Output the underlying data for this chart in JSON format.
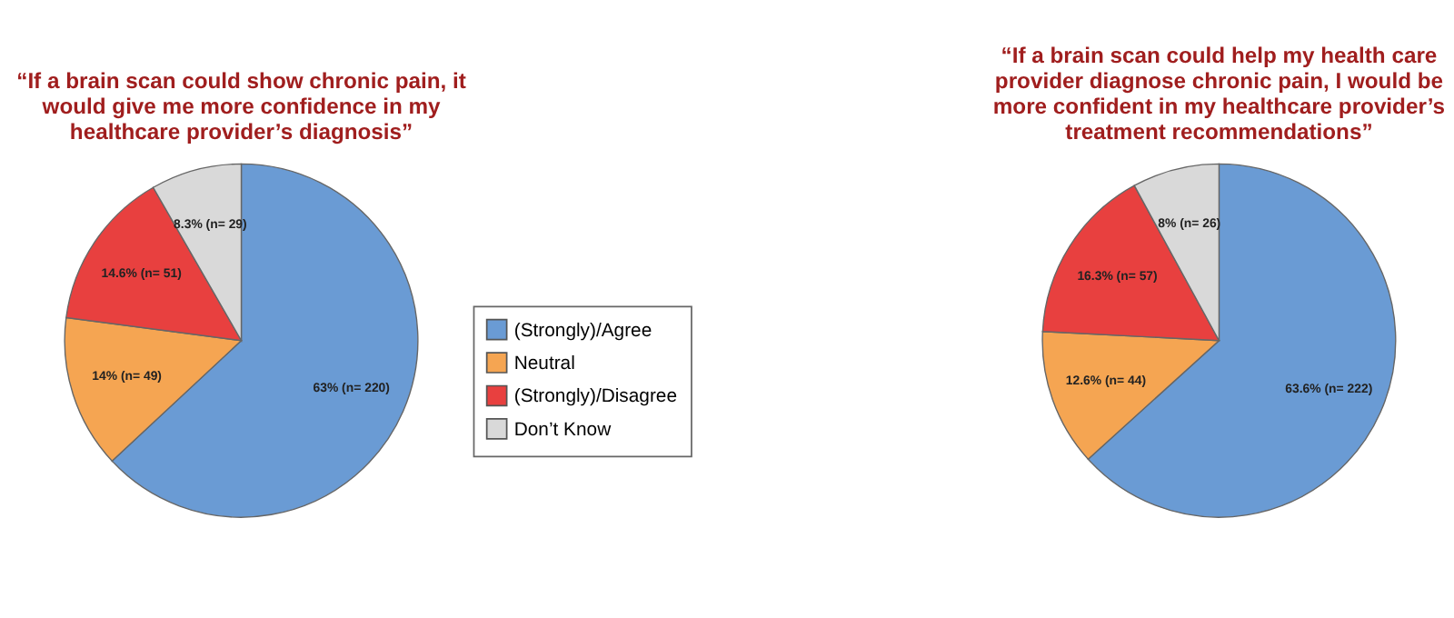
{
  "chart_data": [
    {
      "type": "pie",
      "title": "“If a brain scan could show chronic pain, it would give me more confidence in my healthcare provider’s diagnosis”",
      "categories": [
        "(Strongly)/Agree",
        "Neutral",
        "(Strongly)/Disagree",
        "Don’t Know"
      ],
      "values": [
        63,
        14,
        14.6,
        8.3
      ],
      "colors": [
        "#6a9bd4",
        "#f5a552",
        "#e8403f",
        "#d9d9d9"
      ],
      "value_labels": [
        "63% (n= 220)",
        "14% (n= 49)",
        "14.6% (n= 51)",
        "8.3% (n= 29)"
      ],
      "legend": "right"
    },
    {
      "type": "pie",
      "title": "“If a brain scan could help my health care provider diagnose chronic pain, I would be more confident in my healthcare provider’s treatment recommendations”",
      "categories": [
        null,
        null,
        null,
        null
      ],
      "values": [
        63.6,
        12.6,
        16.3,
        8
      ],
      "colors": [
        "#6a9bd4",
        "#f5a552",
        "#e8403f",
        "#d9d9d9"
      ],
      "value_labels": [
        "63.6% (n= 222)",
        "12.6% (n= 44)",
        "16.3% (n= 57)",
        "8% (n= 26)"
      ]
    }
  ]
}
